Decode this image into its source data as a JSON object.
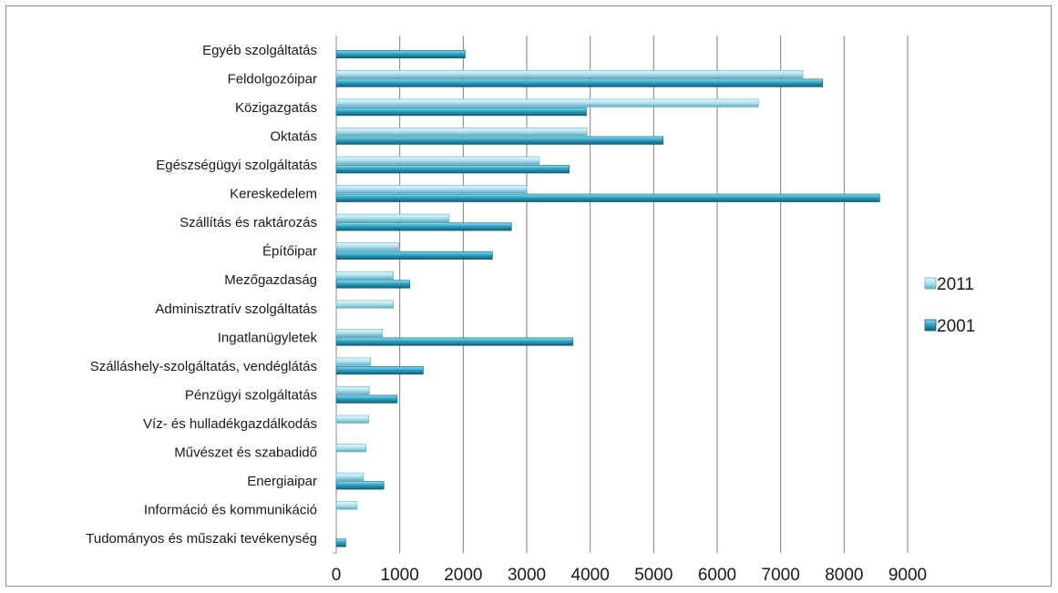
{
  "chart_data": {
    "type": "bar",
    "orientation": "horizontal",
    "categories": [
      "Egyéb szolgáltatás",
      "Feldolgozóipar",
      "Közigazgatás",
      "Oktatás",
      "Egészségügyi szolgáltatás",
      "Kereskedelem",
      "Szállítás és raktározás",
      "Építőipar",
      "Mezőgazdaság",
      "Adminisztratív szolgáltatás",
      "Ingatlanügyletek",
      "Szálláshely-szolgáltatás, vendéglátás",
      "Pénzügyi szolgáltatás",
      "Víz- és hulladékgazdálkodás",
      "Művészet és szabadidő",
      "Energiaipar",
      "Információ és kommunikáció",
      "Tudományos és műszaki tevékenység"
    ],
    "series": [
      {
        "name": "2011",
        "color": "#b7e3ef",
        "values": [
          0,
          7350,
          6650,
          3950,
          3200,
          3000,
          1780,
          980,
          900,
          900,
          730,
          540,
          520,
          510,
          470,
          430,
          330,
          0
        ]
      },
      {
        "name": "2001",
        "color": "#2fa3c2",
        "values": [
          2030,
          7660,
          3940,
          5150,
          3670,
          8560,
          2760,
          2460,
          1160,
          0,
          3730,
          1370,
          960,
          0,
          0,
          750,
          0,
          150
        ]
      }
    ],
    "xlim": [
      0,
      9000
    ],
    "xticks": [
      0,
      1000,
      2000,
      3000,
      4000,
      5000,
      6000,
      7000,
      8000,
      9000
    ],
    "grid": true,
    "legend_position": "right",
    "title": "",
    "xlabel": "",
    "ylabel": ""
  }
}
